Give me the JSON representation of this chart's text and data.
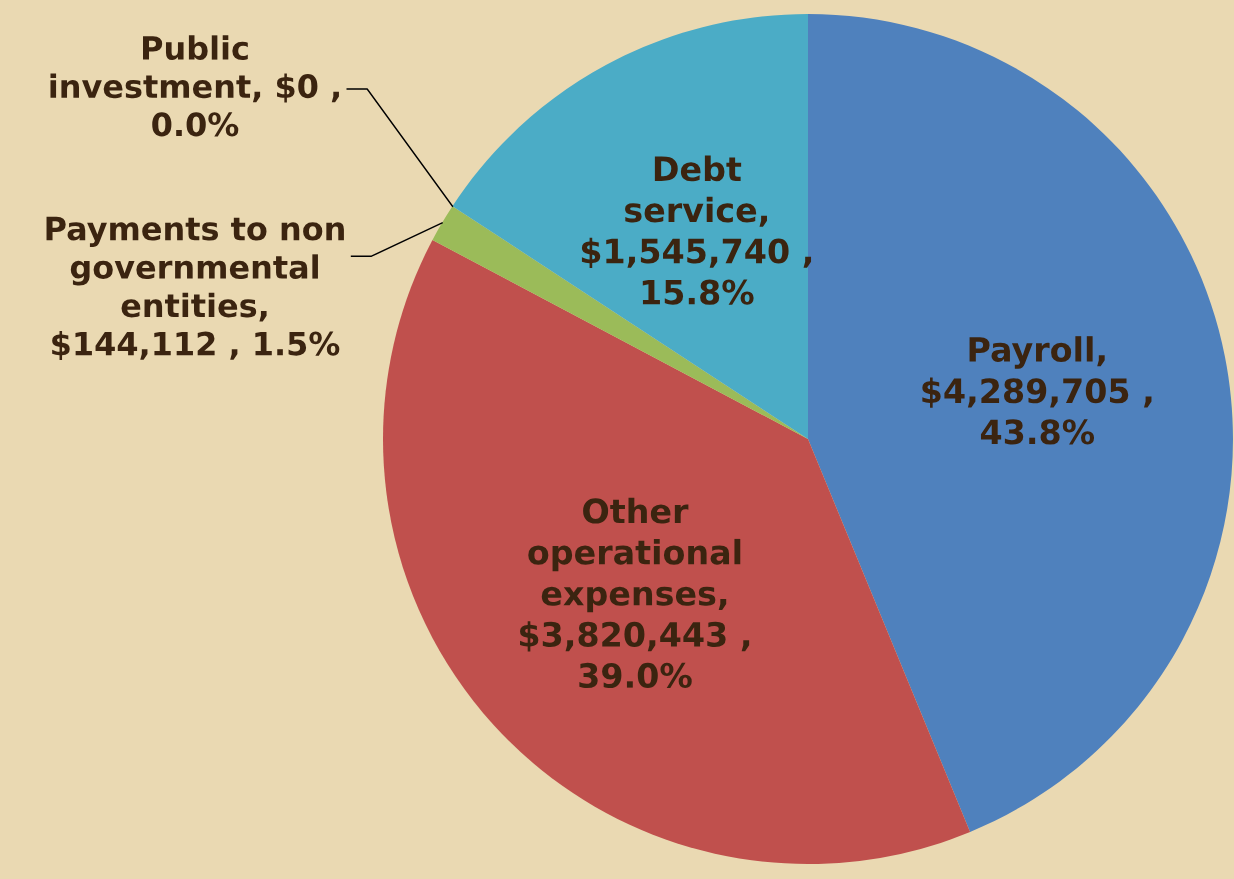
{
  "chart_data": {
    "type": "pie",
    "categories": [
      "Payroll",
      "Other operational expenses",
      "Payments to non governmental entities",
      "Public investment",
      "Debt service"
    ],
    "values": [
      4289705,
      3820443,
      144112,
      0,
      1545740
    ],
    "colors": [
      "#4f81bd",
      "#c0504d",
      "#9bbb59",
      "#8064a2",
      "#4bacc6"
    ],
    "value_labels": [
      ", $4,289,705 , 43.8%",
      ", $3,820,443 , 39.0%",
      ", $144,112 , 1.5%",
      ", $0 , 0.0%",
      ", $1,545,740 , 15.8%"
    ]
  }
}
